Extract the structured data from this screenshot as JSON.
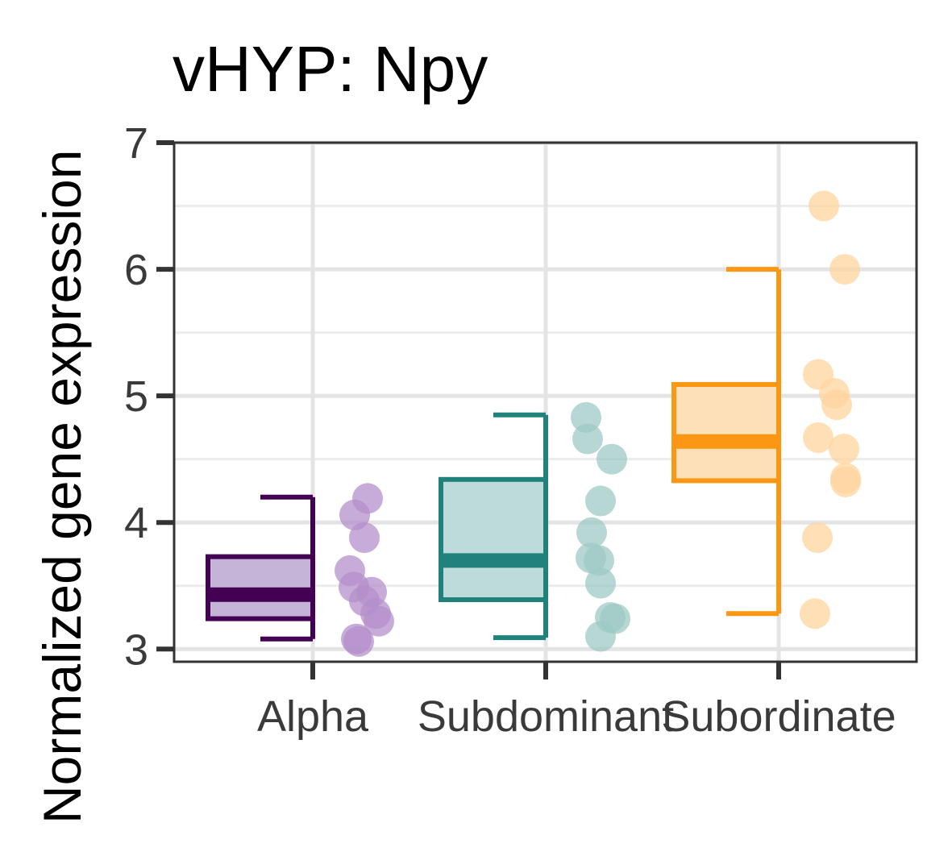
{
  "chart_data": {
    "type": "box",
    "title": "vHYP: Npy",
    "xlabel": "",
    "ylabel": "Normalized gene expression",
    "ylim": [
      2.9,
      7.0
    ],
    "y_ticks": [
      3,
      4,
      5,
      6,
      7
    ],
    "grid": true,
    "legend": "none",
    "categories": [
      "Alpha",
      "Subdominant",
      "Subordinate"
    ],
    "series": [
      {
        "category": "Alpha",
        "color": "#440154",
        "fill": "#c6b4d8",
        "point_color": "#b48fcb",
        "box": {
          "min": 3.08,
          "q1": 3.24,
          "median": 3.43,
          "q3": 3.73,
          "max": 4.2
        },
        "points": [
          4.19,
          4.06,
          3.88,
          3.62,
          3.49,
          3.45,
          3.38,
          3.28,
          3.22,
          3.08,
          3.06
        ]
      },
      {
        "category": "Subdominant",
        "color": "#21827b",
        "fill": "#bedbdb",
        "point_color": "#9dc9c6",
        "box": {
          "min": 3.09,
          "q1": 3.39,
          "median": 3.7,
          "q3": 4.34,
          "max": 4.85
        },
        "points": [
          4.83,
          4.66,
          4.5,
          4.17,
          3.92,
          3.72,
          3.7,
          3.52,
          3.25,
          3.24,
          3.1
        ]
      },
      {
        "category": "Subordinate",
        "color": "#fb9712",
        "fill": "#fee0b8",
        "point_color": "#fdd49e",
        "box": {
          "min": 3.28,
          "q1": 4.33,
          "median": 4.64,
          "q3": 5.09,
          "max": 6.0
        },
        "points": [
          6.5,
          6.0,
          5.17,
          5.02,
          4.93,
          4.67,
          4.58,
          4.35,
          4.32,
          3.88,
          3.28
        ]
      }
    ]
  }
}
